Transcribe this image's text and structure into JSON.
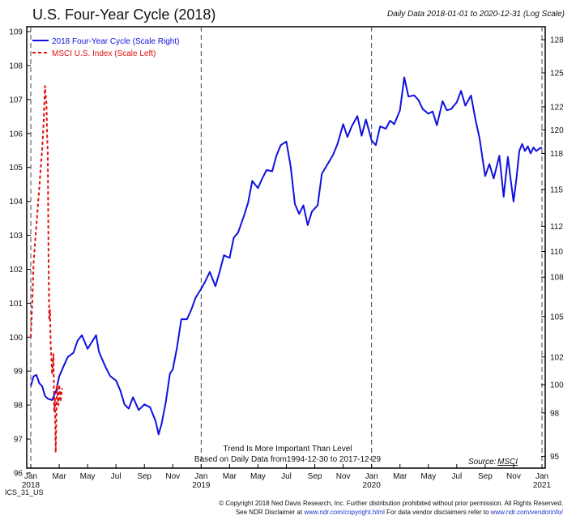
{
  "page": {
    "code": "ICS_31_US",
    "copyright_line1": "© Copyright 2018 Ned Davis Research, Inc. Further distribution prohibited without prior permission. All Rights Reserved.",
    "copyright_line2_a": "See NDR Disclaimer at ",
    "copyright_link1": "www.ndr.com/copyright.html",
    "copyright_line2_b": "  For data vendor disclaimers refer to ",
    "copyright_link2": "www.ndr.com/vendorinfo/"
  },
  "chart_data": {
    "type": "line",
    "title": "U.S. Four-Year Cycle (2018)",
    "subtitle": "Daily Data 2018-01-01 to 2020-12-31 (Log Scale)",
    "annotation_line1": "Trend Is More Important Than Level",
    "annotation_line2": "Based on Daily Data from1994-12-30 to 2017-12-29",
    "source_label": "Source:",
    "source_value": "MSCI",
    "legend_position": "top-left",
    "grid": false,
    "x_ticks": [
      "Jan",
      "Mar",
      "May",
      "Jul",
      "Sep",
      "Nov",
      "Jan",
      "Mar",
      "May",
      "Jul",
      "Sep",
      "Nov",
      "Jan",
      "Mar",
      "May",
      "Jul",
      "Sep",
      "Nov",
      "Jan"
    ],
    "year_labels": [
      "2018",
      "2019",
      "2020",
      "2021"
    ],
    "vertical_dashed_at_months": [
      0,
      12,
      24,
      36
    ],
    "colors": {
      "cycle": "#1010e0",
      "msci": "#e01010"
    },
    "left_axis": {
      "ylim": [
        96,
        109
      ],
      "ticks": [
        96,
        97,
        98,
        99,
        100,
        101,
        102,
        103,
        104,
        105,
        106,
        107,
        108,
        109
      ]
    },
    "right_axis": {
      "ylim": [
        94.2,
        129.2
      ],
      "scale": "log",
      "ticks": [
        95,
        98,
        100,
        102,
        105,
        108,
        110,
        112,
        115,
        118,
        120,
        122,
        125,
        128
      ]
    },
    "series": [
      {
        "name": "2018 Four-Year Cycle (Scale Right)",
        "axis": "right",
        "style": "solid",
        "x_months": [
          0,
          0.2,
          0.4,
          0.6,
          0.8,
          1.0,
          1.2,
          1.5,
          1.8,
          2.0,
          2.3,
          2.6,
          3.0,
          3.3,
          3.6,
          4.0,
          4.3,
          4.6,
          4.8,
          5.0,
          5.3,
          5.6,
          6.0,
          6.3,
          6.6,
          6.9,
          7.2,
          7.6,
          8.0,
          8.4,
          8.8,
          9.0,
          9.2,
          9.5,
          9.8,
          10.0,
          10.3,
          10.6,
          11.0,
          11.3,
          11.6,
          12.0,
          12.3,
          12.6,
          13.0,
          13.3,
          13.6,
          14.0,
          14.3,
          14.6,
          15.0,
          15.3,
          15.6,
          16.0,
          16.3,
          16.6,
          17.0,
          17.3,
          17.6,
          18.0,
          18.3,
          18.6,
          18.9,
          19.2,
          19.5,
          19.8,
          20.2,
          20.5,
          20.8,
          21.0,
          21.3,
          21.6,
          22.0,
          22.3,
          22.6,
          23.0,
          23.3,
          23.6,
          24.0,
          24.3,
          24.6,
          25.0,
          25.3,
          25.6,
          26.0,
          26.3,
          26.6,
          27.0,
          27.3,
          27.6,
          28.0,
          28.3,
          28.6,
          29.0,
          29.3,
          29.6,
          30.0,
          30.3,
          30.6,
          31.0,
          31.3,
          31.6,
          32.0,
          32.3,
          32.6,
          33.0,
          33.3,
          33.6,
          33.8,
          34.0,
          34.2,
          34.4,
          34.6,
          34.8,
          35.0,
          35.2,
          35.4,
          35.6,
          35.8,
          36.0
        ],
        "values": [
          99.9,
          100.6,
          100.7,
          100.1,
          99.9,
          99.2,
          99.0,
          98.9,
          99.6,
          100.6,
          101.3,
          102.0,
          102.3,
          103.2,
          103.6,
          102.6,
          103.1,
          103.6,
          102.4,
          101.9,
          101.2,
          100.6,
          100.3,
          99.6,
          98.6,
          98.3,
          99.1,
          98.2,
          98.6,
          98.4,
          97.4,
          96.5,
          97.2,
          98.7,
          100.8,
          101.1,
          102.7,
          104.8,
          104.8,
          105.5,
          106.4,
          107.1,
          107.7,
          108.4,
          107.3,
          108.4,
          109.7,
          109.5,
          111.1,
          111.5,
          112.8,
          113.9,
          115.7,
          115.1,
          115.9,
          116.6,
          116.5,
          117.8,
          118.7,
          119.0,
          116.9,
          113.8,
          113.0,
          113.7,
          112.1,
          113.2,
          113.7,
          116.3,
          116.9,
          117.3,
          117.9,
          118.8,
          120.5,
          119.4,
          120.3,
          121.2,
          119.5,
          120.9,
          119.1,
          118.7,
          120.3,
          120.1,
          120.8,
          120.5,
          121.7,
          124.6,
          122.9,
          123.0,
          122.6,
          121.8,
          121.4,
          121.6,
          120.4,
          122.5,
          121.7,
          121.8,
          122.4,
          123.4,
          122.1,
          123.0,
          121.0,
          119.3,
          116.1,
          117.1,
          115.9,
          117.8,
          114.4,
          117.7,
          115.8,
          114.0,
          115.9,
          118.2,
          118.8,
          118.2,
          118.6,
          118.0,
          118.5,
          118.2,
          118.4,
          118.5
        ]
      },
      {
        "name": "MSCI U.S. Index (Scale Left)",
        "axis": "left",
        "style": "dashed",
        "x_months": [
          0,
          0.1,
          0.2,
          0.3,
          0.4,
          0.5,
          0.6,
          0.7,
          0.8,
          0.9,
          1.0,
          1.05,
          1.1,
          1.15,
          1.2,
          1.25,
          1.3,
          1.35,
          1.4,
          1.45,
          1.5,
          1.55,
          1.6,
          1.65,
          1.7,
          1.75,
          1.8,
          1.85,
          1.9,
          1.95,
          2.0,
          2.05,
          2.1,
          2.15,
          2.2
        ],
        "values": [
          100.0,
          101.0,
          102.2,
          102.8,
          103.3,
          103.9,
          104.4,
          105.0,
          105.5,
          106.3,
          107.4,
          107.1,
          106.9,
          105.9,
          105.4,
          102.4,
          100.5,
          100.8,
          99.8,
          99.4,
          98.9,
          99.2,
          99.5,
          97.8,
          98.2,
          96.6,
          97.5,
          98.6,
          98.2,
          98.0,
          98.6,
          98.4,
          98.1,
          98.3,
          98.5
        ]
      }
    ]
  }
}
